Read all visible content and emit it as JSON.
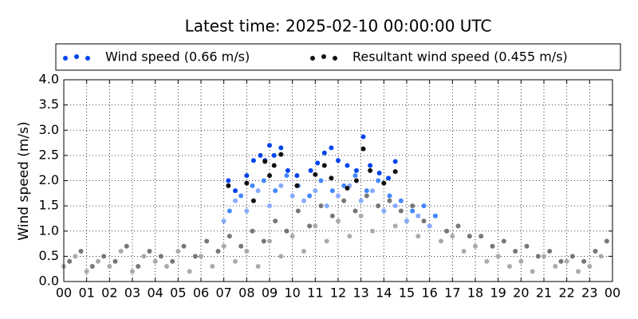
{
  "chart_data": {
    "type": "scatter",
    "title": "Latest time: 2025-02-10 00:00:00 UTC",
    "y_label": "Wind speed (m/s)",
    "xlim": [
      0,
      24
    ],
    "xticks": [
      {
        "value": 0,
        "label": "00"
      },
      {
        "value": 1,
        "label": "01"
      },
      {
        "value": 2,
        "label": "02"
      },
      {
        "value": 3,
        "label": "03"
      },
      {
        "value": 4,
        "label": "04"
      },
      {
        "value": 5,
        "label": "05"
      },
      {
        "value": 6,
        "label": "06"
      },
      {
        "value": 7,
        "label": "07"
      },
      {
        "value": 8,
        "label": "08"
      },
      {
        "value": 9,
        "label": "09"
      },
      {
        "value": 10,
        "label": "10"
      },
      {
        "value": 11,
        "label": "11"
      },
      {
        "value": 12,
        "label": "12"
      },
      {
        "value": 13,
        "label": "13"
      },
      {
        "value": 14,
        "label": "14"
      },
      {
        "value": 15,
        "label": "15"
      },
      {
        "value": 16,
        "label": "16"
      },
      {
        "value": 17,
        "label": "17"
      },
      {
        "value": 18,
        "label": "18"
      },
      {
        "value": 19,
        "label": "19"
      },
      {
        "value": 20,
        "label": "20"
      },
      {
        "value": 21,
        "label": "21"
      },
      {
        "value": 22,
        "label": "22"
      },
      {
        "value": 23,
        "label": "23"
      },
      {
        "value": 24,
        "label": "00"
      }
    ],
    "ylim": [
      0,
      4
    ],
    "yticks": [
      {
        "value": 0,
        "label": "0.0"
      },
      0.5,
      {
        "value": 1,
        "label": "1.0"
      },
      1.5,
      {
        "value": 2,
        "label": "2.0"
      },
      2.5,
      {
        "value": 3,
        "label": "3.0"
      },
      3.5,
      {
        "value": 4,
        "label": "4.0"
      }
    ],
    "grid": true,
    "legend": "top",
    "series": [
      {
        "color": "#aaaaaa",
        "x": [
          0,
          0.5,
          1,
          1.5,
          2,
          2.5,
          3,
          3.5,
          4,
          4.5,
          5,
          5.5,
          6,
          6.5,
          7,
          7.5,
          8,
          8.5,
          9,
          9.5,
          10,
          10.5,
          11,
          11.5,
          12,
          12.5,
          13,
          13.5,
          14,
          14.5,
          15,
          15.5,
          16,
          16.5,
          17,
          17.5,
          18,
          18.5,
          19,
          19.5,
          20,
          20.5,
          21,
          21.5,
          22,
          22.5,
          23,
          23.5
        ],
        "values": [
          0.3,
          0.5,
          0.2,
          0.4,
          0.3,
          0.6,
          0.2,
          0.5,
          0.4,
          0.3,
          0.6,
          0.2,
          0.5,
          0.3,
          0.7,
          0.4,
          0.6,
          0.3,
          0.8,
          0.5,
          0.9,
          0.6,
          1.1,
          0.8,
          1.2,
          0.9,
          1.3,
          1.0,
          1.4,
          1.1,
          1.2,
          0.9,
          1.1,
          0.8,
          0.9,
          0.6,
          0.7,
          0.4,
          0.5,
          0.3,
          0.4,
          0.2,
          0.5,
          0.3,
          0.4,
          0.2,
          0.3,
          0.5
        ]
      },
      {
        "color": "#777777",
        "x": [
          0.25,
          0.75,
          1.25,
          1.75,
          2.25,
          2.75,
          3.25,
          3.75,
          4.25,
          4.75,
          5.25,
          5.75,
          6.25,
          6.75,
          7.25,
          7.75,
          8.25,
          8.75,
          9.25,
          9.75,
          10.25,
          10.75,
          11.25,
          11.75,
          12.25,
          12.75,
          13.25,
          13.75,
          14.25,
          14.75,
          15.25,
          15.75,
          16.25,
          16.75,
          17.25,
          17.75,
          18.25,
          18.75,
          19.25,
          19.75,
          20.25,
          20.75,
          21.25,
          21.75,
          22.25,
          22.75,
          23.25,
          23.75
        ],
        "values": [
          0.4,
          0.6,
          0.3,
          0.5,
          0.4,
          0.7,
          0.3,
          0.6,
          0.5,
          0.4,
          0.7,
          0.5,
          0.8,
          0.6,
          0.9,
          0.7,
          1.0,
          0.8,
          1.2,
          1.0,
          1.4,
          1.1,
          1.5,
          1.3,
          1.6,
          1.4,
          1.7,
          1.5,
          1.6,
          1.4,
          1.5,
          1.2,
          1.3,
          1.0,
          1.1,
          0.9,
          0.9,
          0.7,
          0.8,
          0.6,
          0.7,
          0.5,
          0.6,
          0.4,
          0.5,
          0.4,
          0.6,
          0.8
        ]
      },
      {
        "color": "#88aaff",
        "x": [
          7,
          7.5,
          8,
          8.5,
          9,
          9.5,
          10,
          10.5,
          11,
          11.5,
          12,
          12.5,
          13,
          13.5,
          14,
          14.5,
          15,
          15.5,
          16
        ],
        "values": [
          1.2,
          1.6,
          1.4,
          1.8,
          1.5,
          1.9,
          1.7,
          1.6,
          1.8,
          1.5,
          1.7,
          1.9,
          1.6,
          1.8,
          1.4,
          1.5,
          1.2,
          1.3,
          1.1
        ]
      },
      {
        "color": "#4488ff",
        "x": [
          7.25,
          7.75,
          8.25,
          8.75,
          9.25,
          9.75,
          10.25,
          10.75,
          11.25,
          11.75,
          12.25,
          12.75,
          13.25,
          13.75,
          14.25,
          14.75,
          15.25,
          15.75,
          16.25
        ],
        "values": [
          1.4,
          1.7,
          1.9,
          2.0,
          1.8,
          2.1,
          1.9,
          1.7,
          2.0,
          1.8,
          1.9,
          2.1,
          1.8,
          2.0,
          1.7,
          1.6,
          1.4,
          1.5,
          1.3
        ]
      },
      {
        "name": "Wind speed (0.66 m/s)",
        "color": "#0044ee",
        "x": [
          7.2,
          7.5,
          8.0,
          8.3,
          8.6,
          8.8,
          9.0,
          9.2,
          9.5,
          9.8,
          10.2,
          10.8,
          11.1,
          11.4,
          11.7,
          12.0,
          12.4,
          12.8,
          13.1,
          13.4,
          13.8,
          14.2,
          14.5
        ],
        "values": [
          2.0,
          1.8,
          2.1,
          2.4,
          2.5,
          2.4,
          2.7,
          2.5,
          2.65,
          2.2,
          2.1,
          2.2,
          2.35,
          2.55,
          2.65,
          2.4,
          2.3,
          2.2,
          2.87,
          2.3,
          2.15,
          2.05,
          2.38
        ]
      },
      {
        "name": "Resultant wind speed (0.455 m/s)",
        "color": "#111111",
        "x": [
          7.2,
          8.0,
          8.3,
          8.8,
          9.0,
          9.2,
          9.5,
          10.2,
          11.0,
          11.4,
          11.7,
          12.4,
          12.8,
          13.1,
          13.4,
          14.0,
          14.5
        ],
        "values": [
          1.9,
          1.95,
          1.6,
          2.38,
          2.1,
          2.3,
          2.52,
          1.9,
          2.12,
          2.3,
          2.05,
          1.85,
          2.0,
          2.63,
          2.2,
          1.95,
          2.18
        ]
      }
    ]
  }
}
